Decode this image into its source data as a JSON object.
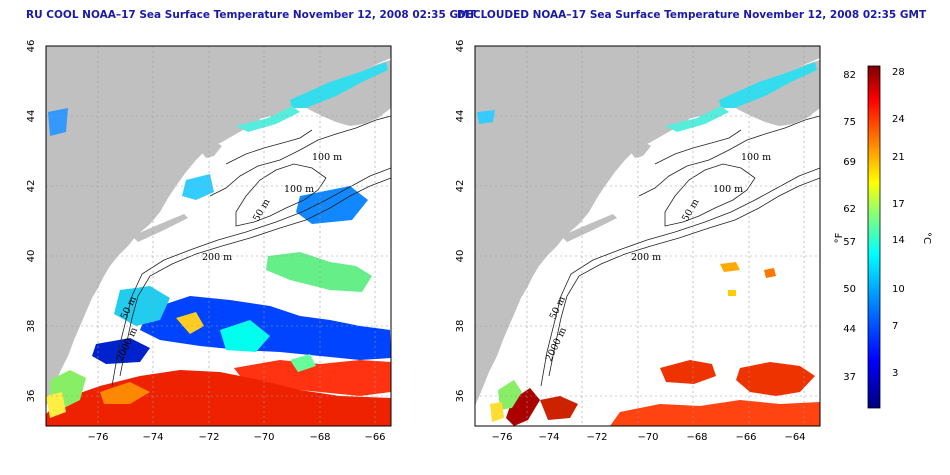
{
  "maps": [
    {
      "title": "RU COOL NOAA–17 Sea Surface Temperature November 12, 2008 02:35 GMT",
      "contour_labels": [
        "100 m",
        "100 m",
        "50 m",
        "200 m",
        "50 m",
        "2000 m"
      ]
    },
    {
      "title": "DECLOUDED NOAA–17 Sea Surface Temperature November 12, 2008 02:35 GMT",
      "contour_labels": [
        "100 m",
        "100 m",
        "50 m",
        "200 m",
        "50 m",
        "2000 m"
      ]
    }
  ],
  "axes": {
    "lon_ticks": [
      "−76",
      "−74",
      "−72",
      "−70",
      "−68",
      "−66",
      "−64"
    ],
    "lat_ticks": [
      "46",
      "44",
      "42",
      "40",
      "38",
      "36"
    ]
  },
  "colorbar": {
    "f_label": "°F",
    "c_label": "°C",
    "f_ticks": [
      "82",
      "75",
      "69",
      "62",
      "57",
      "50",
      "44",
      "37"
    ],
    "c_ticks": [
      "28",
      "24",
      "21",
      "17",
      "14",
      "10",
      "7",
      "3"
    ],
    "colors": [
      "#00007f",
      "#0000ff",
      "#007fff",
      "#00ffff",
      "#7fff7f",
      "#ffff00",
      "#ff7f00",
      "#ff0000",
      "#7f0000"
    ]
  }
}
